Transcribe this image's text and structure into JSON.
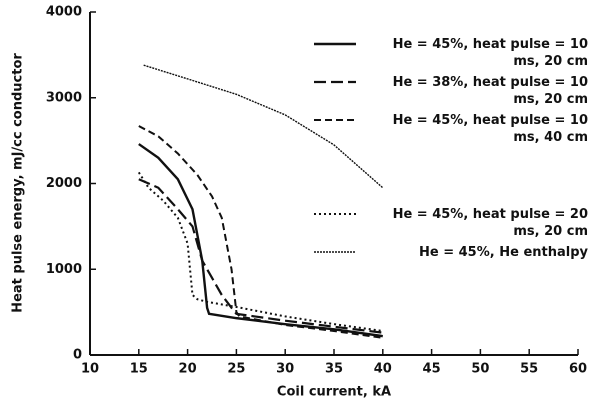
{
  "chart_data": {
    "type": "line",
    "xlabel": "Coil current, kA",
    "ylabel": "Heat pulse energy, mJ/cc conductor",
    "xlim": [
      10,
      60
    ],
    "xticks": [
      10,
      15,
      20,
      25,
      30,
      35,
      40,
      45,
      50,
      55,
      60
    ],
    "ylim": [
      0,
      4000
    ],
    "yticks": [
      0,
      1000,
      2000,
      3000,
      4000
    ],
    "grid": false,
    "series": [
      {
        "name": "He = 45%, heat pulse = 10 ms, 20 cm",
        "color": "#111111",
        "linestyle": "solid",
        "x": [
          15,
          17,
          19,
          20.5,
          21.5,
          22,
          22.2,
          25,
          30,
          35,
          40
        ],
        "values": [
          2460,
          2300,
          2050,
          1700,
          1100,
          550,
          480,
          430,
          360,
          300,
          220
        ]
      },
      {
        "name": "He = 38%, heat pulse = 10 ms, 20 cm",
        "color": "#111111",
        "linestyle": "longdash",
        "x": [
          15,
          17,
          19,
          20.5,
          21.5,
          22.5,
          23.5,
          24.5,
          25,
          30,
          35,
          40
        ],
        "values": [
          2050,
          1950,
          1700,
          1500,
          1100,
          900,
          700,
          550,
          480,
          400,
          330,
          260
        ]
      },
      {
        "name": "He = 45%, heat pulse = 10 ms, 40 cm",
        "color": "#111111",
        "linestyle": "dashed",
        "x": [
          15,
          17,
          19,
          21,
          22.5,
          23.5,
          24.5,
          25,
          25.3,
          30,
          35,
          40
        ],
        "values": [
          2670,
          2550,
          2350,
          2100,
          1850,
          1600,
          1000,
          500,
          450,
          350,
          280,
          200
        ]
      },
      {
        "name": "He = 45%, heat pulse = 20 ms, 20 cm",
        "color": "#111111",
        "linestyle": "dotted",
        "x": [
          15,
          16,
          17.5,
          19,
          20,
          20.5,
          21,
          22,
          25,
          30,
          35,
          40
        ],
        "values": [
          2130,
          1950,
          1800,
          1600,
          1300,
          700,
          650,
          620,
          560,
          450,
          360,
          280
        ]
      },
      {
        "name": "He = 45%, He enthalpy",
        "color": "#111111",
        "linestyle": "finedash",
        "x": [
          15.5,
          20,
          25,
          30,
          35,
          40
        ],
        "values": [
          3380,
          3220,
          3040,
          2800,
          2450,
          1950
        ]
      }
    ]
  }
}
